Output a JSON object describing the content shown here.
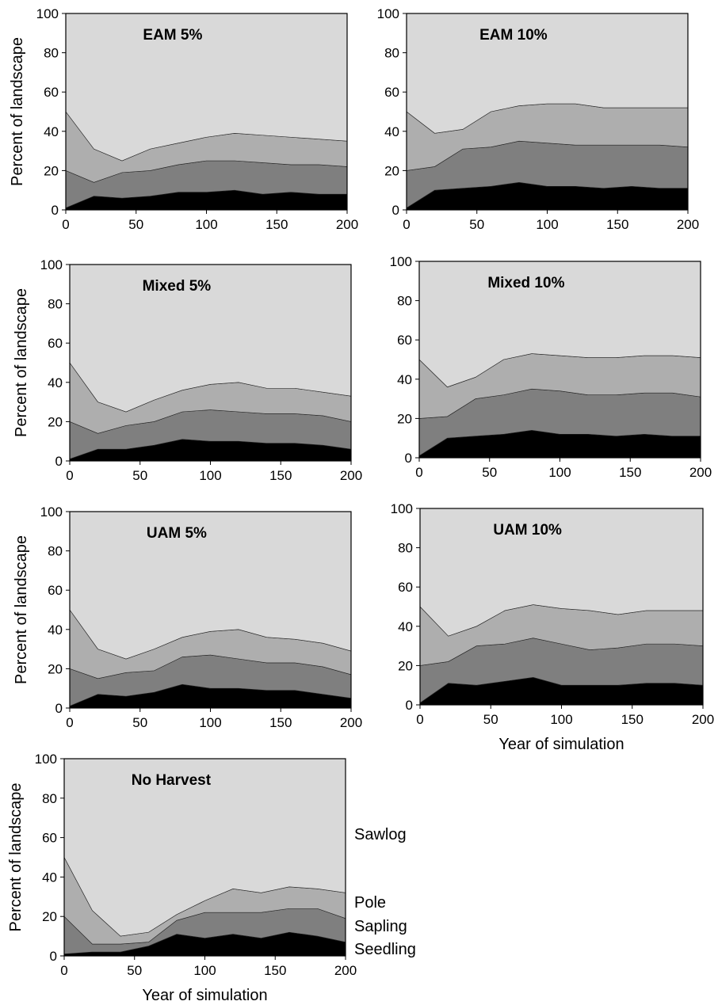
{
  "colors": {
    "Seedling": "#000000",
    "Sapling": "#7f7f7f",
    "Pole": "#aeaeae",
    "Sawlog": "#d9d9d9"
  },
  "legend": {
    "items": [
      "Sawlog",
      "Pole",
      "Sapling",
      "Seedling"
    ]
  },
  "chart_data": [
    {
      "type": "area",
      "stacked": true,
      "title": "EAM 5%",
      "xlabel": "",
      "ylabel": "Percent of landscape",
      "xlim": [
        0,
        200
      ],
      "ylim": [
        0,
        100
      ],
      "xticks": [
        "0",
        "50",
        "100",
        "150",
        "200"
      ],
      "yticks": [
        "0",
        "20",
        "40",
        "60",
        "80",
        "100"
      ],
      "x": [
        0,
        20,
        40,
        60,
        80,
        100,
        120,
        140,
        160,
        180,
        200
      ],
      "series": [
        {
          "name": "Seedling",
          "values": [
            1,
            7,
            6,
            7,
            9,
            9,
            10,
            8,
            9,
            8,
            8
          ]
        },
        {
          "name": "Sapling",
          "values": [
            19,
            7,
            13,
            13,
            14,
            16,
            15,
            16,
            14,
            15,
            14
          ]
        },
        {
          "name": "Pole",
          "values": [
            30,
            17,
            6,
            11,
            11,
            12,
            14,
            14,
            14,
            13,
            13
          ]
        },
        {
          "name": "Sawlog",
          "values": [
            50,
            69,
            75,
            69,
            66,
            63,
            61,
            62,
            63,
            64,
            65
          ]
        }
      ]
    },
    {
      "type": "area",
      "stacked": true,
      "title": "EAM 10%",
      "xlabel": "",
      "ylabel": "",
      "xlim": [
        0,
        200
      ],
      "ylim": [
        0,
        100
      ],
      "xticks": [
        "0",
        "50",
        "100",
        "150",
        "200"
      ],
      "yticks": [
        "0",
        "20",
        "40",
        "60",
        "80",
        "100"
      ],
      "x": [
        0,
        20,
        40,
        60,
        80,
        100,
        120,
        140,
        160,
        180,
        200
      ],
      "series": [
        {
          "name": "Seedling",
          "values": [
            1,
            10,
            11,
            12,
            14,
            12,
            12,
            11,
            12,
            11,
            11
          ]
        },
        {
          "name": "Sapling",
          "values": [
            19,
            12,
            20,
            20,
            21,
            22,
            21,
            22,
            21,
            22,
            21
          ]
        },
        {
          "name": "Pole",
          "values": [
            30,
            17,
            10,
            18,
            18,
            20,
            21,
            19,
            19,
            19,
            20
          ]
        },
        {
          "name": "Sawlog",
          "values": [
            50,
            61,
            59,
            50,
            47,
            46,
            46,
            48,
            48,
            48,
            48
          ]
        }
      ]
    },
    {
      "type": "area",
      "stacked": true,
      "title": "Mixed 5%",
      "xlabel": "",
      "ylabel": "Percent of landscape",
      "xlim": [
        0,
        200
      ],
      "ylim": [
        0,
        100
      ],
      "xticks": [
        "0",
        "50",
        "100",
        "150",
        "200"
      ],
      "yticks": [
        "0",
        "20",
        "40",
        "60",
        "80",
        "100"
      ],
      "x": [
        0,
        20,
        40,
        60,
        80,
        100,
        120,
        140,
        160,
        180,
        200
      ],
      "series": [
        {
          "name": "Seedling",
          "values": [
            1,
            6,
            6,
            8,
            11,
            10,
            10,
            9,
            9,
            8,
            6
          ]
        },
        {
          "name": "Sapling",
          "values": [
            19,
            8,
            12,
            12,
            14,
            16,
            15,
            15,
            15,
            15,
            14
          ]
        },
        {
          "name": "Pole",
          "values": [
            30,
            16,
            7,
            11,
            11,
            13,
            15,
            13,
            13,
            12,
            13
          ]
        },
        {
          "name": "Sawlog",
          "values": [
            50,
            70,
            75,
            69,
            64,
            61,
            60,
            63,
            63,
            65,
            67
          ]
        }
      ]
    },
    {
      "type": "area",
      "stacked": true,
      "title": "Mixed 10%",
      "xlabel": "",
      "ylabel": "",
      "xlim": [
        0,
        200
      ],
      "ylim": [
        0,
        100
      ],
      "xticks": [
        "0",
        "50",
        "100",
        "150",
        "200"
      ],
      "yticks": [
        "0",
        "20",
        "40",
        "60",
        "80",
        "100"
      ],
      "x": [
        0,
        20,
        40,
        60,
        80,
        100,
        120,
        140,
        160,
        180,
        200
      ],
      "series": [
        {
          "name": "Seedling",
          "values": [
            1,
            10,
            11,
            12,
            14,
            12,
            12,
            11,
            12,
            11,
            11
          ]
        },
        {
          "name": "Sapling",
          "values": [
            19,
            11,
            19,
            20,
            21,
            22,
            20,
            21,
            21,
            22,
            20
          ]
        },
        {
          "name": "Pole",
          "values": [
            30,
            15,
            11,
            18,
            18,
            18,
            19,
            19,
            19,
            19,
            20
          ]
        },
        {
          "name": "Sawlog",
          "values": [
            50,
            64,
            59,
            50,
            47,
            48,
            49,
            49,
            48,
            48,
            49
          ]
        }
      ]
    },
    {
      "type": "area",
      "stacked": true,
      "title": "UAM 5%",
      "xlabel": "",
      "ylabel": "Percent of landscape",
      "xlim": [
        0,
        200
      ],
      "ylim": [
        0,
        100
      ],
      "xticks": [
        "0",
        "50",
        "100",
        "150",
        "200"
      ],
      "yticks": [
        "0",
        "20",
        "40",
        "60",
        "80",
        "100"
      ],
      "x": [
        0,
        20,
        40,
        60,
        80,
        100,
        120,
        140,
        160,
        180,
        200
      ],
      "series": [
        {
          "name": "Seedling",
          "values": [
            1,
            7,
            6,
            8,
            12,
            10,
            10,
            9,
            9,
            7,
            5
          ]
        },
        {
          "name": "Sapling",
          "values": [
            19,
            8,
            12,
            11,
            14,
            17,
            15,
            14,
            14,
            14,
            12
          ]
        },
        {
          "name": "Pole",
          "values": [
            30,
            15,
            7,
            11,
            10,
            12,
            15,
            13,
            12,
            12,
            12
          ]
        },
        {
          "name": "Sawlog",
          "values": [
            50,
            70,
            75,
            70,
            64,
            61,
            60,
            64,
            65,
            67,
            71
          ]
        }
      ]
    },
    {
      "type": "area",
      "stacked": true,
      "title": "UAM 10%",
      "xlabel": "Year of simulation",
      "ylabel": "",
      "xlim": [
        0,
        200
      ],
      "ylim": [
        0,
        100
      ],
      "xticks": [
        "0",
        "50",
        "100",
        "150",
        "200"
      ],
      "yticks": [
        "0",
        "20",
        "40",
        "60",
        "80",
        "100"
      ],
      "x": [
        0,
        20,
        40,
        60,
        80,
        100,
        120,
        140,
        160,
        180,
        200
      ],
      "series": [
        {
          "name": "Seedling",
          "values": [
            1,
            11,
            10,
            12,
            14,
            10,
            10,
            10,
            11,
            11,
            10
          ]
        },
        {
          "name": "Sapling",
          "values": [
            19,
            11,
            20,
            19,
            20,
            21,
            18,
            19,
            20,
            20,
            20
          ]
        },
        {
          "name": "Pole",
          "values": [
            30,
            13,
            10,
            17,
            17,
            18,
            20,
            17,
            17,
            17,
            18
          ]
        },
        {
          "name": "Sawlog",
          "values": [
            50,
            65,
            60,
            52,
            49,
            51,
            52,
            54,
            52,
            52,
            52
          ]
        }
      ]
    },
    {
      "type": "area",
      "stacked": true,
      "title": "No Harvest",
      "xlabel": "Year of simulation",
      "ylabel": "Percent of landscape",
      "xlim": [
        0,
        200
      ],
      "ylim": [
        0,
        100
      ],
      "xticks": [
        "0",
        "50",
        "100",
        "150",
        "200"
      ],
      "yticks": [
        "0",
        "20",
        "40",
        "60",
        "80",
        "100"
      ],
      "x": [
        0,
        20,
        40,
        60,
        80,
        100,
        120,
        140,
        160,
        180,
        200
      ],
      "series": [
        {
          "name": "Seedling",
          "values": [
            1,
            2,
            2,
            5,
            11,
            9,
            11,
            9,
            12,
            10,
            7
          ]
        },
        {
          "name": "Sapling",
          "values": [
            19,
            4,
            4,
            2,
            7,
            13,
            11,
            13,
            12,
            14,
            12
          ]
        },
        {
          "name": "Pole",
          "values": [
            30,
            17,
            4,
            5,
            3,
            6,
            12,
            10,
            11,
            10,
            13
          ]
        },
        {
          "name": "Sawlog",
          "values": [
            50,
            77,
            90,
            88,
            79,
            72,
            66,
            68,
            65,
            66,
            68
          ]
        }
      ]
    }
  ]
}
